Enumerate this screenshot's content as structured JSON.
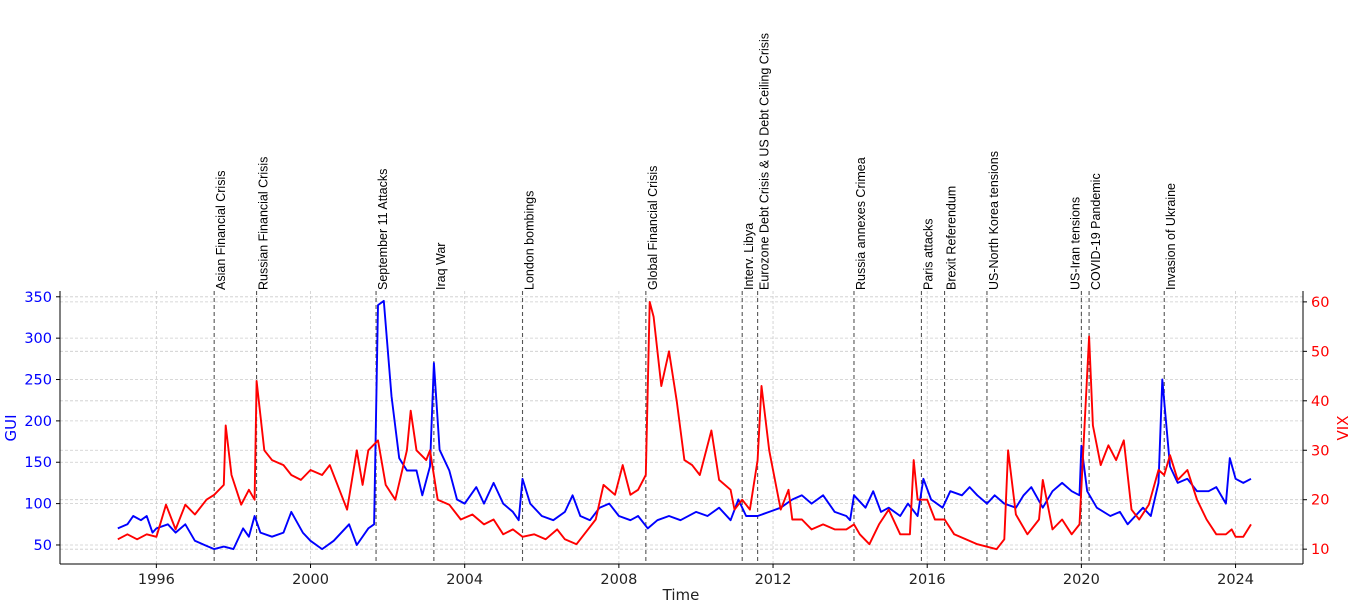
{
  "chart_data": {
    "type": "line",
    "xlabel": "Time",
    "ylabel_left": "GUI",
    "ylabel_right": "VIX",
    "xlim": [
      1993.5,
      2025.75
    ],
    "ylim_left": [
      27,
      357
    ],
    "ylim_right": [
      7,
      62.2
    ],
    "x_ticks": [
      "1996",
      "2000",
      "2004",
      "2008",
      "2012",
      "2016",
      "2020",
      "2024"
    ],
    "y_ticks_left": [
      50,
      100,
      150,
      200,
      250,
      300,
      350
    ],
    "y_ticks_right": [
      10,
      20,
      30,
      40,
      50,
      60
    ],
    "grid": true,
    "colors": {
      "GUI": "#0000ff",
      "VIX": "#ff0000",
      "events": "#555555"
    },
    "events": [
      {
        "year": 1997.5,
        "label": "Asian Financial Crisis"
      },
      {
        "year": 1998.6,
        "label": "Russian Financial Crisis"
      },
      {
        "year": 2001.7,
        "label": "September 11 Attacks"
      },
      {
        "year": 2003.2,
        "label": "Iraq War"
      },
      {
        "year": 2005.5,
        "label": "London bombings"
      },
      {
        "year": 2008.7,
        "label": "Global Financial Crisis"
      },
      {
        "year": 2011.2,
        "label": "Interv. Libya"
      },
      {
        "year": 2011.6,
        "label": "Eurozone Debt Crisis & US Debt Ceiling Crisis"
      },
      {
        "year": 2014.1,
        "label": "Russia annexes Crimea"
      },
      {
        "year": 2015.85,
        "label": "Paris attacks"
      },
      {
        "year": 2016.45,
        "label": "Brexit Referendum"
      },
      {
        "year": 2017.55,
        "label": "US-North Korea tensions"
      },
      {
        "year": 2020.0,
        "label": "US-Iran tensions"
      },
      {
        "year": 2020.2,
        "label": "COVID-19 Pandemic"
      },
      {
        "year": 2022.15,
        "label": "Invasion of Ukraine"
      }
    ],
    "series": [
      {
        "name": "GUI",
        "axis": "left",
        "x": [
          1995.0,
          1995.25,
          1995.4,
          1995.6,
          1995.75,
          1995.9,
          1996.0,
          1996.3,
          1996.5,
          1996.75,
          1997.0,
          1997.25,
          1997.5,
          1997.75,
          1998.0,
          1998.25,
          1998.4,
          1998.55,
          1998.7,
          1999.0,
          1999.3,
          1999.5,
          1999.8,
          2000.0,
          2000.3,
          2000.6,
          2001.0,
          2001.2,
          2001.5,
          2001.65,
          2001.75,
          2001.9,
          2002.1,
          2002.3,
          2002.5,
          2002.75,
          2002.9,
          2003.1,
          2003.2,
          2003.35,
          2003.6,
          2003.8,
          2004.0,
          2004.3,
          2004.5,
          2004.75,
          2005.0,
          2005.25,
          2005.4,
          2005.5,
          2005.7,
          2006.0,
          2006.3,
          2006.6,
          2006.8,
          2007.0,
          2007.25,
          2007.5,
          2007.75,
          2008.0,
          2008.3,
          2008.5,
          2008.75,
          2009.0,
          2009.3,
          2009.6,
          2010.0,
          2010.3,
          2010.6,
          2010.9,
          2011.1,
          2011.3,
          2011.6,
          2011.9,
          2012.2,
          2012.5,
          2012.75,
          2013.0,
          2013.3,
          2013.6,
          2013.9,
          2014.0,
          2014.1,
          2014.4,
          2014.6,
          2014.8,
          2015.0,
          2015.3,
          2015.5,
          2015.75,
          2015.9,
          2016.1,
          2016.4,
          2016.6,
          2016.9,
          2017.1,
          2017.3,
          2017.55,
          2017.75,
          2018.0,
          2018.3,
          2018.5,
          2018.7,
          2019.0,
          2019.25,
          2019.5,
          2019.75,
          2019.95,
          2020.0,
          2020.15,
          2020.4,
          2020.75,
          2021.0,
          2021.2,
          2021.4,
          2021.6,
          2021.8,
          2022.0,
          2022.1,
          2022.3,
          2022.5,
          2022.75,
          2023.0,
          2023.3,
          2023.5,
          2023.75,
          2023.85,
          2024.0,
          2024.2,
          2024.4
        ],
        "values": [
          70,
          75,
          85,
          80,
          85,
          65,
          70,
          75,
          65,
          75,
          55,
          50,
          45,
          48,
          45,
          70,
          60,
          85,
          65,
          60,
          65,
          90,
          65,
          55,
          45,
          55,
          75,
          50,
          70,
          75,
          340,
          345,
          230,
          155,
          140,
          140,
          110,
          145,
          270,
          165,
          140,
          105,
          100,
          120,
          100,
          125,
          100,
          90,
          80,
          130,
          100,
          85,
          80,
          90,
          110,
          85,
          80,
          95,
          100,
          85,
          80,
          85,
          70,
          80,
          85,
          80,
          90,
          85,
          95,
          80,
          105,
          85,
          85,
          90,
          95,
          105,
          110,
          100,
          110,
          90,
          85,
          80,
          110,
          95,
          115,
          90,
          95,
          85,
          100,
          85,
          130,
          105,
          95,
          115,
          110,
          120,
          110,
          100,
          110,
          100,
          95,
          110,
          120,
          95,
          115,
          125,
          115,
          110,
          170,
          115,
          95,
          85,
          90,
          75,
          85,
          95,
          85,
          125,
          250,
          145,
          125,
          130,
          115,
          115,
          120,
          100,
          155,
          130,
          125,
          130
        ]
      },
      {
        "name": "VIX",
        "axis": "right",
        "x": [
          1995.0,
          1995.25,
          1995.5,
          1995.75,
          1996.0,
          1996.25,
          1996.5,
          1996.75,
          1997.0,
          1997.3,
          1997.5,
          1997.75,
          1997.8,
          1997.95,
          1998.2,
          1998.4,
          1998.55,
          1998.6,
          1998.8,
          1999.0,
          1999.3,
          1999.5,
          1999.75,
          2000.0,
          2000.3,
          2000.5,
          2000.75,
          2000.95,
          2001.2,
          2001.35,
          2001.5,
          2001.75,
          2001.95,
          2002.2,
          2002.5,
          2002.6,
          2002.75,
          2003.0,
          2003.1,
          2003.3,
          2003.6,
          2003.9,
          2004.2,
          2004.5,
          2004.75,
          2005.0,
          2005.25,
          2005.5,
          2005.8,
          2006.1,
          2006.4,
          2006.6,
          2006.9,
          2007.1,
          2007.4,
          2007.6,
          2007.9,
          2008.1,
          2008.3,
          2008.5,
          2008.7,
          2008.8,
          2008.9,
          2009.1,
          2009.3,
          2009.5,
          2009.7,
          2009.9,
          2010.1,
          2010.4,
          2010.6,
          2010.9,
          2011.0,
          2011.2,
          2011.4,
          2011.6,
          2011.7,
          2011.9,
          2012.2,
          2012.4,
          2012.5,
          2012.75,
          2013.0,
          2013.3,
          2013.6,
          2013.9,
          2014.1,
          2014.25,
          2014.5,
          2014.75,
          2015.0,
          2015.3,
          2015.55,
          2015.65,
          2015.75,
          2016.0,
          2016.2,
          2016.45,
          2016.7,
          2017.0,
          2017.3,
          2017.55,
          2017.8,
          2018.0,
          2018.1,
          2018.3,
          2018.6,
          2018.9,
          2019.0,
          2019.25,
          2019.5,
          2019.75,
          2019.95,
          2020.2,
          2020.3,
          2020.5,
          2020.7,
          2020.9,
          2021.1,
          2021.3,
          2021.5,
          2021.75,
          2022.0,
          2022.15,
          2022.3,
          2022.5,
          2022.75,
          2023.0,
          2023.25,
          2023.5,
          2023.75,
          2023.9,
          2024.0,
          2024.2,
          2024.4
        ],
        "values": [
          12,
          13,
          12,
          13,
          12.5,
          19,
          14,
          19,
          17,
          20,
          21,
          23,
          35,
          25,
          19,
          22,
          20,
          44,
          30,
          28,
          27,
          25,
          24,
          26,
          25,
          27,
          22,
          18,
          30,
          23,
          30,
          32,
          23,
          20,
          30,
          38,
          30,
          28,
          30,
          20,
          19,
          16,
          17,
          15,
          16,
          13,
          14,
          12.5,
          13,
          12,
          14,
          12,
          11,
          13,
          16,
          23,
          21,
          27,
          21,
          22,
          25,
          60,
          57,
          43,
          50,
          40,
          28,
          27,
          25,
          34,
          24,
          22,
          18,
          20,
          18,
          28,
          43,
          30,
          18,
          22,
          16,
          16,
          14,
          15,
          14,
          14,
          15,
          13,
          11,
          15,
          18,
          13,
          13,
          28,
          20,
          20,
          16,
          16,
          13,
          12,
          11,
          10.5,
          10,
          12,
          30,
          17,
          13,
          16,
          24,
          14,
          16,
          13,
          15,
          53,
          35,
          27,
          31,
          28,
          32,
          18,
          16,
          19,
          26,
          25,
          29,
          24,
          26,
          20,
          16,
          13,
          13,
          14,
          12.5,
          12.5,
          15
        ]
      }
    ]
  }
}
